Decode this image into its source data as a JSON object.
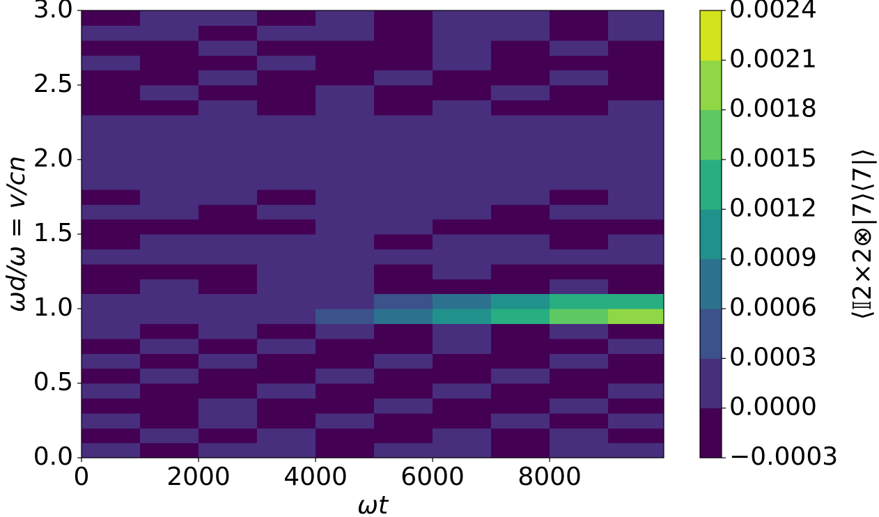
{
  "chart_data": {
    "type": "contour",
    "xlabel": "ωt",
    "ylabel": "ωd/ω = v/cn",
    "colorbar_label": "⟨𝕀2×2⊗|7⟩⟨7|⟩",
    "xlim": [
      0,
      9950
    ],
    "ylim": [
      0,
      3
    ],
    "xticks": [
      0,
      2000,
      4000,
      6000,
      8000
    ],
    "yticks": [
      {
        "value": 0,
        "label": "0.0"
      },
      0.5,
      {
        "value": 1,
        "label": "1.0"
      },
      1.5,
      {
        "value": 2,
        "label": "2.0"
      },
      2.5,
      {
        "value": 3,
        "label": "3.0"
      }
    ],
    "zticks": [
      {
        "value": -0.0003,
        "label": "−0.0003"
      },
      {
        "value": 0,
        "label": "0.0000"
      },
      0.0003,
      0.0006,
      0.0009,
      0.0012,
      0.0015,
      0.0018,
      0.0021,
      0.0024
    ],
    "colors": [
      "#440154",
      "#472f7d",
      "#3b528b",
      "#2c728e",
      "#21918c",
      "#28ae80",
      "#5ec962",
      "#8fd744",
      "#d2e21b"
    ],
    "x": [
      500,
      1500,
      2500,
      3500,
      4500,
      5500,
      6500,
      7500,
      8500,
      9500
    ],
    "y": [
      0.05,
      0.15,
      0.25,
      0.35,
      0.45,
      0.55,
      0.65,
      0.75,
      0.85,
      0.95,
      1.05,
      1.15,
      1.25,
      1.35,
      1.45,
      1.55,
      1.65,
      1.75,
      1.85,
      1.95,
      2.05,
      2.15,
      2.25,
      2.35,
      2.45,
      2.55,
      2.65,
      2.75,
      2.85,
      2.95
    ],
    "z": [
      [
        0.0001,
        -0.0001,
        0.0001,
        0.0001,
        -0.0001,
        0.0001,
        0.0001,
        -0.0001,
        0.0001,
        0.0001
      ],
      [
        -0.0001,
        0.0001,
        -0.0001,
        0.0001,
        -0.0001,
        -0.0001,
        0.0001,
        -0.0001,
        0.0001,
        -0.0001
      ],
      [
        0.0001,
        -0.0001,
        0.0001,
        -0.0001,
        0.0001,
        -0.0001,
        -0.0001,
        0.0001,
        -0.0001,
        0.0001
      ],
      [
        -0.0001,
        -0.0001,
        0.0001,
        -0.0001,
        -0.0001,
        0.0001,
        -0.0001,
        -0.0001,
        0.0001,
        -0.0001
      ],
      [
        0.0001,
        -0.0001,
        -0.0001,
        0.0001,
        -0.0001,
        -0.0001,
        0.0001,
        -0.0001,
        -0.0001,
        0.0001
      ],
      [
        -0.0001,
        0.0001,
        -0.0001,
        -0.0001,
        0.0001,
        -0.0001,
        -0.0001,
        0.0001,
        -0.0001,
        -0.0001
      ],
      [
        0.0001,
        -0.0001,
        0.0001,
        -0.0001,
        -0.0001,
        0.0001,
        -0.0001,
        -0.0001,
        0.0001,
        -0.0001
      ],
      [
        -0.0001,
        0.0001,
        -0.0001,
        0.0001,
        -0.0001,
        -0.0001,
        0.0001,
        -0.0001,
        -0.0001,
        0.0001
      ],
      [
        0.0001,
        -0.0001,
        0.0001,
        -0.0001,
        0.0001,
        -0.0001,
        0.0001,
        -0.0001,
        0.0001,
        -0.0001
      ],
      [
        0.0001,
        0.0001,
        0.0001,
        0.0002,
        0.0004,
        0.0008,
        0.0011,
        0.0014,
        0.0017,
        0.0019
      ],
      [
        0.0001,
        0.0001,
        0.0001,
        0.0001,
        0.0002,
        0.0005,
        0.0007,
        0.001,
        0.0012,
        0.0013
      ],
      [
        -0.0001,
        0.0001,
        -0.0001,
        0.0001,
        0.0001,
        -0.0001,
        -0.0001,
        -0.0001,
        0.0001,
        -0.0001
      ],
      [
        -0.0001,
        -0.0001,
        -0.0001,
        0.0001,
        0.0001,
        -0.0001,
        0.0001,
        -0.0001,
        -0.0001,
        -0.0001
      ],
      [
        0.0001,
        0.0001,
        0.0001,
        0.0001,
        0.0001,
        0.0001,
        0.0001,
        0.0001,
        0.0001,
        0.0001
      ],
      [
        -0.0001,
        0.0001,
        0.0001,
        0.0001,
        0.0001,
        -0.0001,
        0.0001,
        0.0001,
        -0.0001,
        0.0001
      ],
      [
        -0.0001,
        -0.0001,
        -0.0001,
        -0.0001,
        0.0001,
        0.0001,
        -0.0001,
        -0.0001,
        -0.0001,
        -0.0001
      ],
      [
        0.0001,
        0.0001,
        -0.0001,
        0.0001,
        0.0001,
        0.0001,
        0.0001,
        -0.0001,
        0.0001,
        0.0001
      ],
      [
        -0.0001,
        0.0001,
        0.0001,
        -0.0001,
        0.0001,
        0.0001,
        0.0001,
        0.0001,
        -0.0001,
        0.0001
      ],
      [
        0.0001,
        0.0001,
        0.0001,
        0.0001,
        0.0001,
        0.0001,
        0.0001,
        0.0001,
        0.0001,
        0.0001
      ],
      [
        0.0001,
        0.0001,
        0.0001,
        0.0001,
        0.0001,
        0.0001,
        0.0001,
        0.0001,
        0.0001,
        0.0001
      ],
      [
        0.0001,
        0.0001,
        0.0001,
        0.0001,
        0.0001,
        0.0001,
        0.0001,
        0.0001,
        0.0001,
        0.0001
      ],
      [
        0.0001,
        0.0001,
        0.0001,
        0.0001,
        0.0001,
        0.0001,
        0.0001,
        0.0001,
        0.0001,
        0.0001
      ],
      [
        0.0001,
        0.0001,
        0.0001,
        0.0001,
        0.0001,
        0.0001,
        0.0001,
        0.0001,
        0.0001,
        0.0001
      ],
      [
        -0.0001,
        -0.0001,
        0.0001,
        -0.0001,
        0.0001,
        -0.0001,
        0.0001,
        -0.0001,
        -0.0001,
        0.0001
      ],
      [
        -0.0001,
        0.0001,
        -0.0001,
        -0.0001,
        0.0001,
        -0.0001,
        -0.0001,
        0.0001,
        -0.0001,
        -0.0001
      ],
      [
        -0.0001,
        -0.0001,
        0.0001,
        -0.0001,
        -0.0001,
        0.0001,
        -0.0001,
        -0.0001,
        0.0001,
        -0.0001
      ],
      [
        0.0001,
        -0.0001,
        -0.0001,
        0.0001,
        -0.0001,
        -0.0001,
        0.0001,
        -0.0001,
        -0.0001,
        -0.0001
      ],
      [
        -0.0001,
        -0.0001,
        0.0001,
        -0.0001,
        -0.0001,
        -0.0001,
        0.0001,
        -0.0001,
        0.0001,
        -0.0001
      ],
      [
        0.0001,
        0.0001,
        -0.0001,
        0.0001,
        0.0001,
        -0.0001,
        0.0001,
        0.0001,
        -0.0001,
        0.0001
      ],
      [
        -0.0001,
        0.0001,
        0.0001,
        -0.0001,
        0.0001,
        -0.0001,
        0.0001,
        0.0001,
        -0.0001,
        0.0001
      ]
    ]
  }
}
